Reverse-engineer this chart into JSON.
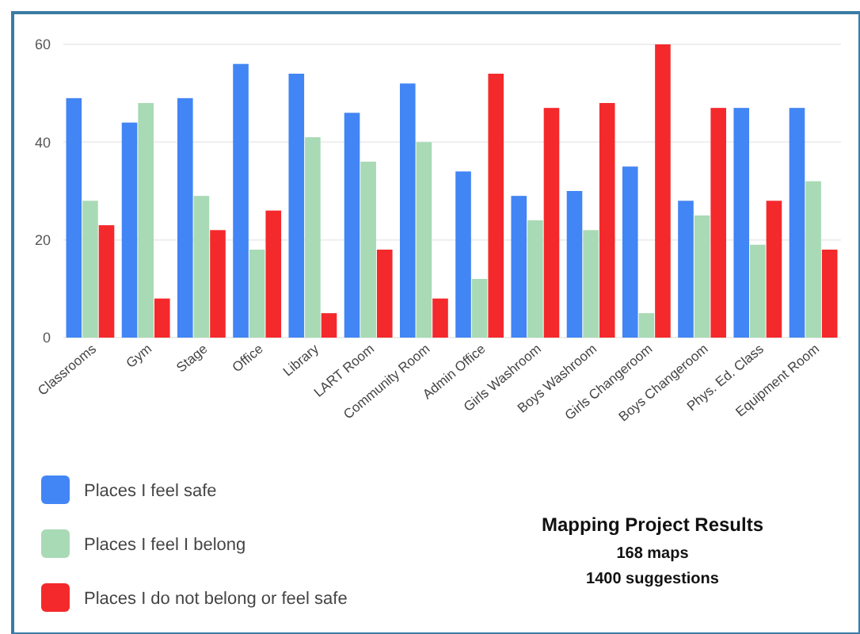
{
  "chart_data": {
    "type": "bar",
    "title": "Mapping Project Results",
    "subtitle": "168 maps",
    "annotations": [
      "1400 suggestions"
    ],
    "categories": [
      "Classrooms",
      "Gym",
      "Stage",
      "Office",
      "Library",
      "LART Room",
      "Community Room",
      "Admin Office",
      "Girls Washroom",
      "Boys Washroom",
      "Girls Changeroom",
      "Boys Changeroom",
      "Phys. Ed. Class",
      "Equipment Room"
    ],
    "series": [
      {
        "name": "Places I feel safe",
        "color": "#4285f4",
        "values": [
          49,
          44,
          49,
          56,
          54,
          46,
          52,
          34,
          29,
          30,
          35,
          28,
          47,
          47
        ]
      },
      {
        "name": "Places I feel I belong",
        "color": "#a8dab5",
        "values": [
          28,
          48,
          29,
          18,
          41,
          36,
          40,
          12,
          24,
          22,
          5,
          25,
          19,
          32
        ]
      },
      {
        "name": "Places I do not belong or feel safe",
        "color": "#f4292c",
        "values": [
          23,
          8,
          22,
          26,
          5,
          18,
          8,
          54,
          47,
          48,
          60,
          47,
          28,
          18
        ]
      }
    ],
    "ylim": [
      0,
      60
    ],
    "yticks": [
      0,
      20,
      40,
      60
    ],
    "grid": "y",
    "legend": "bottom left"
  }
}
